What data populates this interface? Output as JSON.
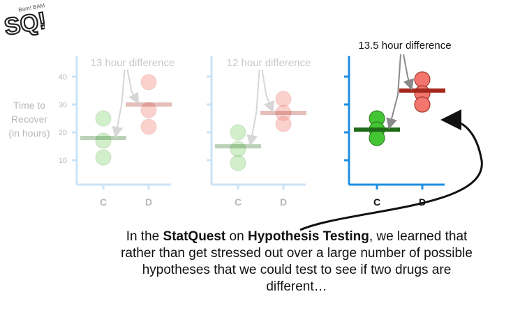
{
  "logo": {
    "text": "SQ!",
    "small_text": "Bam! BAM!"
  },
  "y_axis": {
    "label_lines": [
      "Time to",
      "Recover",
      "(in hours)"
    ],
    "ticks": [
      "40",
      "30",
      "20",
      "10"
    ]
  },
  "panels": [
    {
      "difference_label": "13 hour difference",
      "faded": true,
      "groups": [
        {
          "label": "C",
          "color": "#7fd06a",
          "points": [
            25,
            17,
            11
          ],
          "mean_line": 18
        },
        {
          "label": "D",
          "color": "#f07a70",
          "points": [
            38,
            28,
            22
          ],
          "mean_line": 30
        }
      ]
    },
    {
      "difference_label": "12 hour difference",
      "faded": true,
      "groups": [
        {
          "label": "C",
          "color": "#7fd06a",
          "points": [
            20,
            14,
            9
          ],
          "mean_line": 15
        },
        {
          "label": "D",
          "color": "#f07a70",
          "points": [
            32,
            27,
            23
          ],
          "mean_line": 27
        }
      ]
    },
    {
      "difference_label": "13.5 hour difference",
      "faded": false,
      "groups": [
        {
          "label": "C",
          "color": "#44c534",
          "points": [
            25,
            21,
            18
          ],
          "mean_line": 21
        },
        {
          "label": "D",
          "color": "#f2766e",
          "points": [
            39,
            34,
            30
          ],
          "mean_line": 35
        }
      ]
    }
  ],
  "colors": {
    "axis_faded": "#cbe3f6",
    "axis_active": "#1e8fe0",
    "c_mean": "#1f6a17",
    "d_mean": "#a5271b",
    "faded_text": "#b8b8b8"
  },
  "caption": {
    "part1": "In the ",
    "bold1": "StatQuest",
    "part2": " on ",
    "bold2": "Hypothesis Testing",
    "part3": ", we learned that rather than get stressed out over a large number of possible hypotheses that we could test to see if two drugs are different…"
  }
}
